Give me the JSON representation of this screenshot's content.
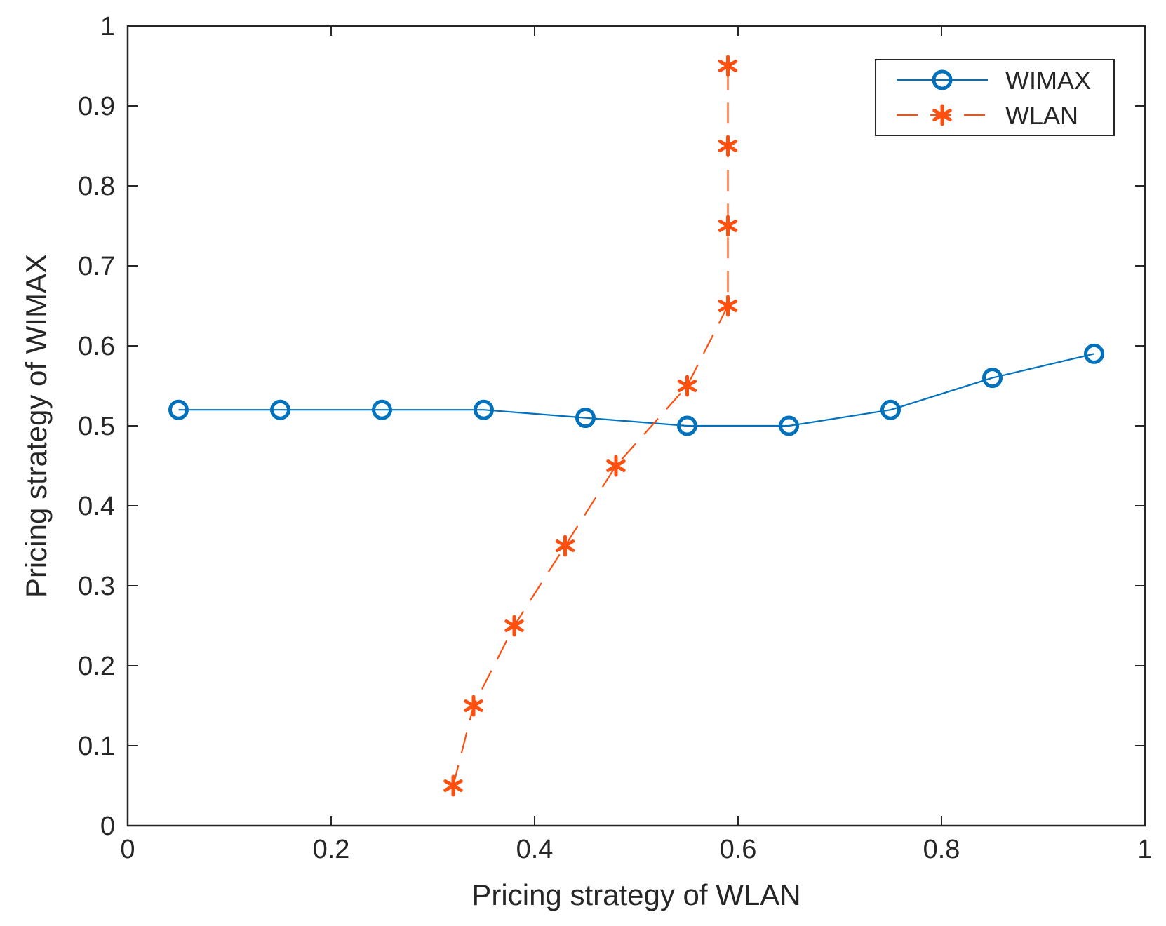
{
  "chart_data": {
    "type": "line",
    "title": "",
    "xlabel": "Pricing strategy of WLAN",
    "ylabel": "Pricing strategy of WIMAX",
    "xlim": [
      0,
      1
    ],
    "ylim": [
      0,
      1
    ],
    "xticks": [
      0,
      0.2,
      0.4,
      0.6,
      0.8,
      1
    ],
    "yticks": [
      0,
      0.1,
      0.2,
      0.3,
      0.4,
      0.5,
      0.6,
      0.7,
      0.8,
      0.9,
      1
    ],
    "xtick_labels": [
      "0",
      "0.2",
      "0.4",
      "0.6",
      "0.8",
      "1"
    ],
    "ytick_labels": [
      "0",
      "0.1",
      "0.2",
      "0.3",
      "0.4",
      "0.5",
      "0.6",
      "0.7",
      "0.8",
      "0.9",
      "1"
    ],
    "grid": false,
    "legend_position": "top-right",
    "series": [
      {
        "name": "WIMAX",
        "color": "#0072BD",
        "line_style": "solid",
        "marker": "circle",
        "x": [
          0.05,
          0.15,
          0.25,
          0.35,
          0.45,
          0.55,
          0.65,
          0.75,
          0.85,
          0.95
        ],
        "y": [
          0.52,
          0.52,
          0.52,
          0.52,
          0.51,
          0.5,
          0.5,
          0.52,
          0.56,
          0.59
        ]
      },
      {
        "name": "WLAN",
        "color": "#FF4F0F",
        "line_style": "dashed",
        "marker": "asterisk",
        "x": [
          0.32,
          0.34,
          0.38,
          0.43,
          0.48,
          0.55,
          0.59,
          0.59,
          0.59,
          0.59
        ],
        "y": [
          0.05,
          0.15,
          0.25,
          0.35,
          0.45,
          0.55,
          0.65,
          0.75,
          0.85,
          0.95
        ]
      }
    ]
  }
}
